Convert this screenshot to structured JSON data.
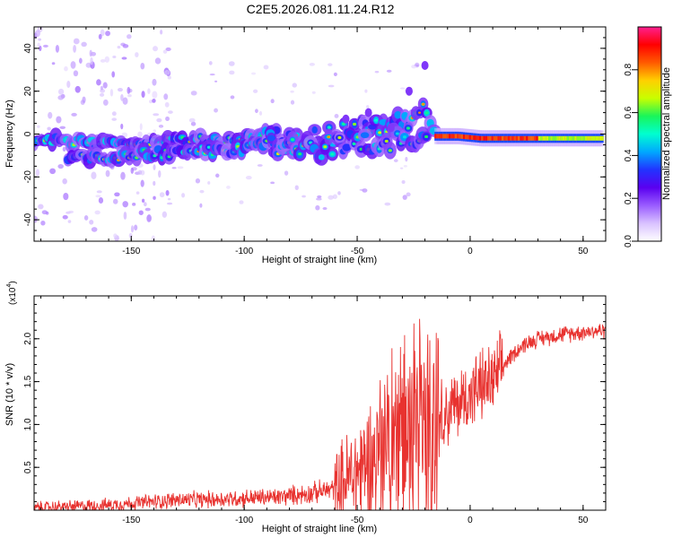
{
  "title": "C2E5.2026.081.11.24.R12",
  "colorbar": {
    "label": "Normalized spectral amplitude",
    "ticks": [
      "0.0",
      "0.2",
      "0.4",
      "0.6",
      "0.8"
    ],
    "tick_values": [
      0.0,
      0.2,
      0.4,
      0.6,
      0.8
    ],
    "range": [
      0,
      1
    ],
    "colors": [
      "#ffffff",
      "#d9c2ff",
      "#9a5cff",
      "#5a00f0",
      "#2233ff",
      "#00a8ff",
      "#00ffd0",
      "#19f55a",
      "#c8ff00",
      "#ffd000",
      "#ff5a00",
      "#ff0000",
      "#ff1f8f"
    ]
  },
  "chart_data": [
    {
      "type": "heatmap",
      "xlabel": "Height of straight line (km)",
      "ylabel": "Frequency (Hz)",
      "xlim": [
        -193,
        60
      ],
      "ylim": [
        -50,
        50
      ],
      "x_ticks": [
        -150,
        -100,
        -50,
        0,
        50
      ],
      "y_ticks": [
        -40,
        -20,
        0,
        20,
        40
      ],
      "colormap": "white-violet-blue-cyan-green-yellow-red",
      "colorbar_range": [
        0,
        1
      ],
      "tracks": [
        {
          "x": [
            -193,
            -180,
            -170,
            -160,
            -150,
            -140,
            -130,
            -120,
            -110,
            -100,
            -90,
            -85
          ],
          "y": [
            -3,
            -3,
            -4,
            -4,
            -4,
            -3,
            -3,
            -3,
            -3,
            -2,
            0,
            2
          ]
        },
        {
          "x": [
            -178,
            -170,
            -160,
            -150,
            -140,
            -130,
            -120,
            -110,
            -100,
            -90,
            -85
          ],
          "y": [
            -11,
            -11,
            -11,
            -10,
            -9,
            -9,
            -8,
            -8,
            -7,
            -5,
            -4
          ]
        },
        {
          "x": [
            -88,
            -80,
            -70,
            -60,
            -50,
            -40,
            -35,
            -30,
            -25,
            -20,
            -16
          ],
          "y": [
            -5,
            -4,
            -3,
            -1,
            1,
            4,
            6,
            8,
            10,
            12,
            1
          ]
        },
        {
          "x": [
            -85,
            -75,
            -65,
            -55,
            -45,
            -35,
            -25,
            -18
          ],
          "y": [
            -8,
            -7,
            -6,
            -5,
            -4,
            -3,
            -2,
            -1
          ]
        },
        {
          "x": [
            -15,
            -5,
            5,
            15,
            25,
            35,
            45,
            55,
            58
          ],
          "y": [
            -1,
            -1,
            -2,
            -2,
            -2,
            -2,
            -2,
            -2,
            -2
          ]
        }
      ]
    },
    {
      "type": "line",
      "xlabel": "Height of straight line (km)",
      "ylabel": "SNR (10 * v/v)",
      "y_multiplier": "(x10",
      "y_multiplier_exp": "4",
      "xlim": [
        -193,
        60
      ],
      "ylim": [
        0,
        2.5
      ],
      "x_ticks": [
        -150,
        -100,
        -50,
        0,
        50
      ],
      "y_ticks": [
        0.5,
        1.0,
        1.5,
        2.0
      ],
      "y_tick_labels": [
        "0.5",
        "1.0",
        "1.5",
        "2.0"
      ],
      "color": "#e8322f",
      "series": [
        {
          "x": [
            -193,
            -180,
            -170,
            -160,
            -150,
            -140,
            -130,
            -120,
            -110,
            -100,
            -90,
            -85,
            -80,
            -70,
            -60,
            -55,
            -50,
            -45,
            -40,
            -35,
            -30,
            -25,
            -20,
            -17,
            -16,
            -14,
            -10,
            -5,
            0,
            5,
            10,
            12,
            15,
            20,
            25,
            30,
            40,
            50,
            60
          ],
          "y": [
            0.03,
            0.04,
            0.05,
            0.06,
            0.08,
            0.1,
            0.12,
            0.12,
            0.13,
            0.14,
            0.15,
            0.15,
            0.17,
            0.2,
            0.25,
            0.35,
            0.45,
            0.55,
            0.65,
            0.8,
            0.9,
            0.85,
            0.9,
            1.0,
            1.05,
            1.1,
            1.15,
            1.25,
            1.35,
            1.45,
            1.5,
            1.55,
            1.7,
            1.85,
            1.95,
            2.0,
            2.05,
            2.08,
            2.1
          ]
        }
      ]
    }
  ]
}
